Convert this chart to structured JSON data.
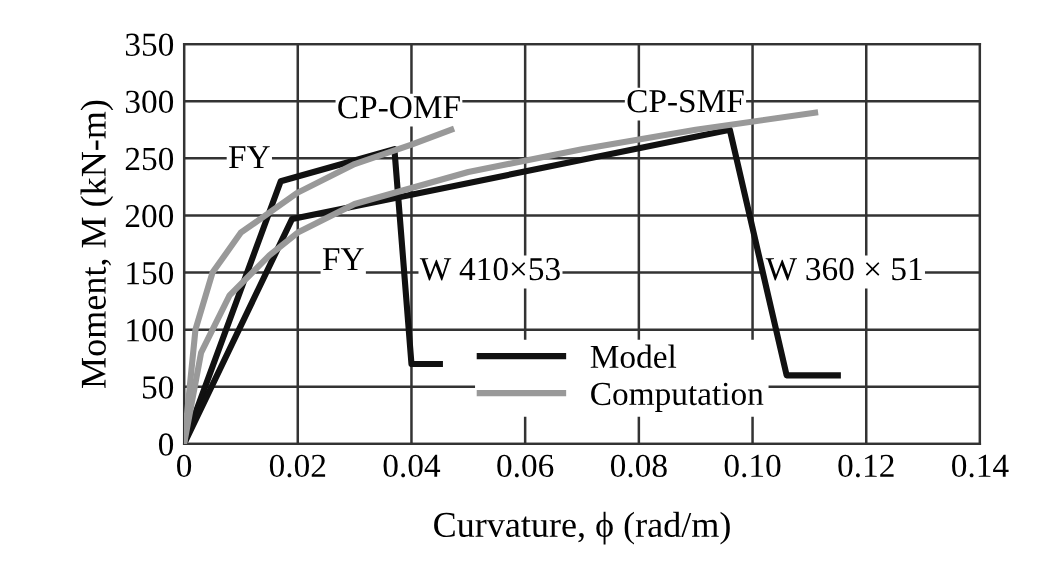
{
  "chart_data": {
    "type": "line",
    "xlabel": "Curvature, ϕ (rad/m)",
    "ylabel": "Moment, M (kN-m)",
    "xlim": [
      0,
      0.14
    ],
    "xticks": [
      0,
      0.02,
      0.04,
      0.06,
      0.08,
      {
        "value": 0.1,
        "label": "0.10"
      },
      0.12,
      0.14
    ],
    "ylim": [
      0,
      350
    ],
    "yticks": [
      0,
      50,
      100,
      150,
      200,
      250,
      300,
      350
    ],
    "grid": true,
    "legend": "bottom",
    "marker": "none",
    "line_style": "solid",
    "series": [
      {
        "name": "Model",
        "color": "#111111",
        "x": [
          0,
          0.017,
          0.037,
          0.04,
          0.045
        ],
        "values": [
          0,
          230,
          258,
          70,
          70
        ]
      },
      {
        "color": "#111111",
        "x": [
          0,
          0.019,
          0.096,
          0.106,
          0.115
        ],
        "values": [
          0,
          197,
          275,
          60,
          60
        ]
      },
      {
        "name": "Computation",
        "color": "#999999",
        "x": [
          0,
          0.002,
          0.005,
          0.01,
          0.02,
          0.03,
          0.04,
          0.047
        ],
        "values": [
          0,
          100,
          150,
          185,
          220,
          245,
          262,
          275
        ]
      },
      {
        "color": "#999999",
        "x": [
          0,
          0.003,
          0.008,
          0.015,
          0.02,
          0.03,
          0.05,
          0.07,
          0.09,
          0.111
        ],
        "values": [
          0,
          80,
          130,
          165,
          185,
          210,
          238,
          258,
          275,
          290
        ]
      }
    ],
    "annotations": [
      "FY",
      "CP-OMF",
      "FY",
      "CP-SMF",
      "W 410×53",
      "W 360 × 51"
    ]
  }
}
